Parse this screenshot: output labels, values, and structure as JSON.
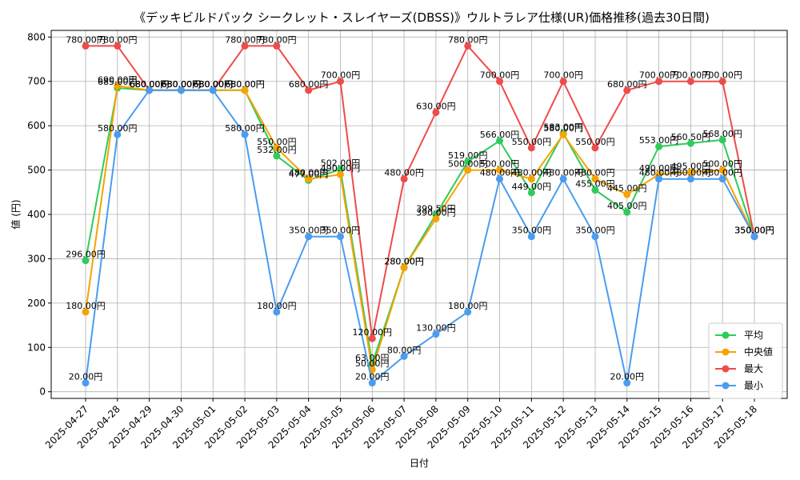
{
  "chart_data": {
    "type": "line",
    "title": "《デッキビルドパック シークレット・スレイヤーズ(DBSS)》ウルトラレア仕様(UR)価格推移(過去30日間)",
    "xlabel": "日付",
    "ylabel": "値 (円)",
    "ylim": [
      -15,
      815
    ],
    "yticks": [
      0,
      100,
      200,
      300,
      400,
      500,
      600,
      700,
      800
    ],
    "grid": true,
    "legend_position": "bottom-right",
    "value_suffix": "円",
    "categories": [
      "2025-04-27",
      "2025-04-28",
      "2025-04-29",
      "2025-04-30",
      "2025-05-01",
      "2025-05-02",
      "2025-05-03",
      "2025-05-04",
      "2025-05-05",
      "2025-05-06",
      "2025-05-07",
      "2025-05-08",
      "2025-05-09",
      "2025-05-10",
      "2025-05-11",
      "2025-05-12",
      "2025-05-13",
      "2025-05-14",
      "2025-05-15",
      "2025-05-16",
      "2025-05-17",
      "2025-05-18"
    ],
    "series": [
      {
        "name": "平均",
        "color": "#2ecc5a",
        "values": [
          296,
          685,
          680,
          680,
          680,
          680,
          532,
          477,
          502,
          63,
          280,
          399.5,
          519,
          566,
          449,
          583,
          455,
          405,
          553,
          560.5,
          568,
          350
        ]
      },
      {
        "name": "中央値",
        "color": "#f5a300",
        "values": [
          180,
          690,
          680,
          680,
          680,
          680,
          550,
          480,
          490,
          50,
          280,
          390,
          500,
          500,
          480,
          580,
          480,
          445,
          490,
          495,
          500,
          350
        ]
      },
      {
        "name": "最大",
        "color": "#ef4b4b",
        "values": [
          780,
          780,
          680,
          680,
          680,
          780,
          780,
          680,
          700,
          120,
          480,
          630,
          780,
          700,
          550,
          700,
          550,
          680,
          700,
          700,
          700,
          350
        ]
      },
      {
        "name": "最小",
        "color": "#4a9cf0",
        "values": [
          20,
          580,
          680,
          680,
          680,
          580,
          180,
          350,
          350,
          20,
          80,
          130,
          180,
          480,
          350,
          480,
          350,
          20,
          480,
          480,
          480,
          350
        ]
      }
    ]
  }
}
